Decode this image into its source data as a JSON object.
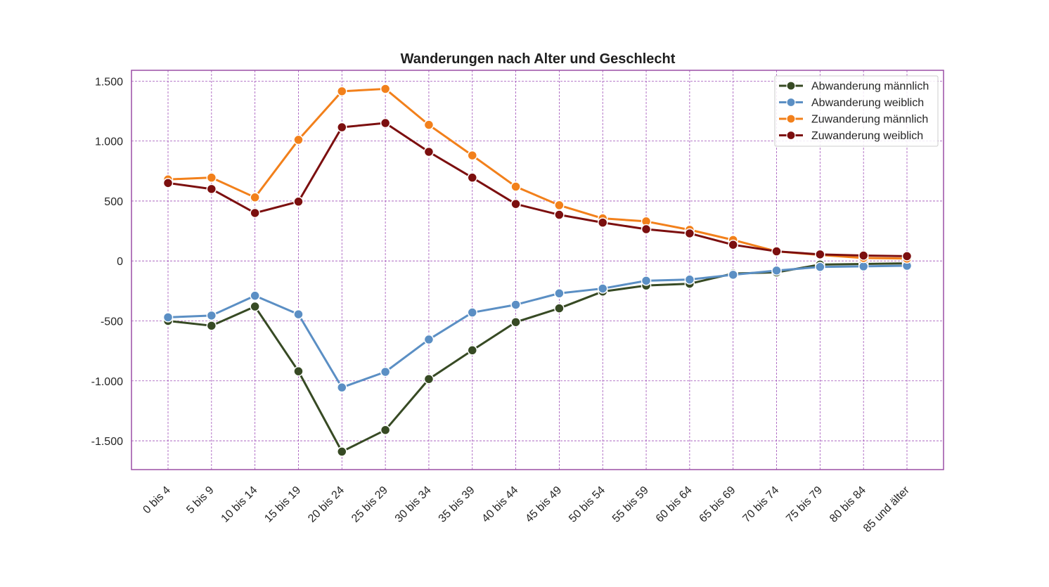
{
  "chart_data": {
    "type": "line",
    "title": "Wanderungen nach Alter und Geschlecht",
    "xlabel": "",
    "ylabel": "",
    "categories": [
      "0 bis 4",
      "5 bis 9",
      "10 bis 14",
      "15 bis 19",
      "20 bis 24",
      "25 bis 29",
      "30 bis 34",
      "35 bis 39",
      "40 bis 44",
      "45 bis 49",
      "50 bis 54",
      "55 bis 59",
      "60 bis 64",
      "65 bis 69",
      "70 bis 74",
      "75 bis 79",
      "80 bis 84",
      "85 und älter"
    ],
    "ylim": [
      -1740,
      1590
    ],
    "yticks": [
      1500,
      1000,
      500,
      0,
      -500,
      -1000,
      -1500
    ],
    "ytick_labels": [
      "1.500",
      "1.000",
      "500",
      "0",
      "-500",
      "-1.000",
      "-1.500"
    ],
    "grid": true,
    "legend_position": "top-right",
    "frame_color": "#9b4fa6",
    "grid_color": "#a050b8",
    "series": [
      {
        "name": "Abwanderung männlich",
        "color": "#374a24",
        "values": [
          -500,
          -540,
          -380,
          -920,
          -1590,
          -1410,
          -985,
          -745,
          -510,
          -395,
          -255,
          -205,
          -190,
          -105,
          -95,
          -30,
          -25,
          -20
        ]
      },
      {
        "name": "Abwanderung weiblich",
        "color": "#5b8fc4",
        "values": [
          -470,
          -455,
          -290,
          -445,
          -1055,
          -925,
          -655,
          -430,
          -365,
          -270,
          -230,
          -165,
          -155,
          -115,
          -80,
          -50,
          -45,
          -40
        ]
      },
      {
        "name": "Zuwanderung männlich",
        "color": "#f2801b",
        "values": [
          680,
          695,
          530,
          1010,
          1415,
          1435,
          1135,
          880,
          620,
          465,
          355,
          330,
          260,
          175,
          80,
          50,
          25,
          20
        ]
      },
      {
        "name": "Zuwanderung weiblich",
        "color": "#7c0f0f",
        "values": [
          650,
          600,
          400,
          495,
          1115,
          1150,
          910,
          695,
          475,
          385,
          320,
          265,
          230,
          135,
          80,
          55,
          45,
          40
        ]
      }
    ]
  }
}
